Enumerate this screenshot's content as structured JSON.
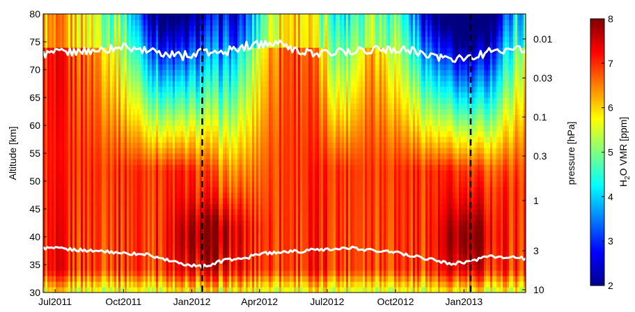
{
  "chart_data": {
    "type": "heatmap",
    "title": "",
    "xlabel": "",
    "ylabel": "Altitude [km]",
    "y2label": "pressure [hPa]",
    "colorbar_label": "H2O VMR [ppm]",
    "colorbar_label_parts": {
      "prefix": "H",
      "subscript": "2",
      "suffix": "O VMR [ppm]"
    },
    "colormap": "jet",
    "clim": [
      2,
      8
    ],
    "colorbar_ticks": [
      "2",
      "3",
      "4",
      "5",
      "6",
      "7",
      "8"
    ],
    "ylim": [
      30,
      80
    ],
    "y_ticks": [
      "30",
      "35",
      "40",
      "45",
      "50",
      "55",
      "60",
      "65",
      "70",
      "75",
      "80"
    ],
    "x_range_months": [
      "2011-06",
      "2013-03"
    ],
    "x_ticks": [
      {
        "label": "Jul2011",
        "date": "2011-07-01"
      },
      {
        "label": "Oct2011",
        "date": "2011-10-01"
      },
      {
        "label": "Jan2012",
        "date": "2012-01-01"
      },
      {
        "label": "Apr2012",
        "date": "2012-04-01"
      },
      {
        "label": "Jul2012",
        "date": "2012-07-01"
      },
      {
        "label": "Oct2012",
        "date": "2012-10-01"
      },
      {
        "label": "Jan2013",
        "date": "2013-01-01"
      }
    ],
    "pressure_ticks": [
      {
        "label": "0.01",
        "altitude_km": 75.5
      },
      {
        "label": "0.03",
        "altitude_km": 68.5
      },
      {
        "label": "0.1",
        "altitude_km": 61.5
      },
      {
        "label": "0.3",
        "altitude_km": 54.5
      },
      {
        "label": "1",
        "altitude_km": 46.5
      },
      {
        "label": "3",
        "altitude_km": 37.5
      },
      {
        "label": "10",
        "altitude_km": 30.5
      }
    ],
    "vertical_dashed_lines": [
      "2012-01-15",
      "2013-01-10"
    ],
    "upper_white_line_km": [
      {
        "date": "2011-06-15",
        "alt": 72.8
      },
      {
        "date": "2011-08-01",
        "alt": 73.2
      },
      {
        "date": "2011-10-01",
        "alt": 74.0
      },
      {
        "date": "2011-11-15",
        "alt": 73.0
      },
      {
        "date": "2011-12-20",
        "alt": 72.5
      },
      {
        "date": "2012-01-15",
        "alt": 73.0
      },
      {
        "date": "2012-02-15",
        "alt": 73.2
      },
      {
        "date": "2012-03-20",
        "alt": 74.5
      },
      {
        "date": "2012-04-20",
        "alt": 74.8
      },
      {
        "date": "2012-06-01",
        "alt": 73.0
      },
      {
        "date": "2012-07-15",
        "alt": 73.2
      },
      {
        "date": "2012-09-01",
        "alt": 73.6
      },
      {
        "date": "2012-10-15",
        "alt": 73.8
      },
      {
        "date": "2012-11-20",
        "alt": 72.5
      },
      {
        "date": "2012-12-20",
        "alt": 71.8
      },
      {
        "date": "2013-01-15",
        "alt": 72.5
      },
      {
        "date": "2013-02-15",
        "alt": 73.5
      },
      {
        "date": "2013-03-25",
        "alt": 73.5
      }
    ],
    "lower_white_line_km": [
      {
        "date": "2011-06-15",
        "alt": 38.0
      },
      {
        "date": "2011-09-01",
        "alt": 37.4
      },
      {
        "date": "2011-11-01",
        "alt": 36.8
      },
      {
        "date": "2011-12-15",
        "alt": 35.2
      },
      {
        "date": "2012-01-15",
        "alt": 34.6
      },
      {
        "date": "2012-02-15",
        "alt": 35.8
      },
      {
        "date": "2012-03-15",
        "alt": 36.2
      },
      {
        "date": "2012-04-01",
        "alt": 37.0
      },
      {
        "date": "2012-06-01",
        "alt": 37.5
      },
      {
        "date": "2012-08-01",
        "alt": 38.0
      },
      {
        "date": "2012-10-01",
        "alt": 37.2
      },
      {
        "date": "2012-11-15",
        "alt": 36.0
      },
      {
        "date": "2012-12-15",
        "alt": 35.2
      },
      {
        "date": "2013-01-10",
        "alt": 35.6
      },
      {
        "date": "2013-02-01",
        "alt": 36.5
      },
      {
        "date": "2013-03-25",
        "alt": 36.1
      }
    ],
    "vmr_field_description": [
      {
        "period": "2011-06 to 2011-09",
        "above_65km": "orange-red 6.5-7",
        "below_65km": "red 7"
      },
      {
        "period": "2011-10 to 2012-01",
        "above_70km": "dark blue 2-2.5",
        "55_70km": "cyan 4-5",
        "below_55km": "red 7-7.5"
      },
      {
        "period": "2012-02 to 2012-03",
        "above_70km": "blue 3",
        "40_65km": "cyan-yellow 4.5-5.5",
        "below_40km": "dark red 7.5"
      },
      {
        "period": "2012-04 to 2012-09",
        "all": "orange-red 6.5-7"
      },
      {
        "period": "2012-10 to 2013-03",
        "above_70km": "dark blue 2-3",
        "50_70km": "cyan-yellow 4.5-5.5",
        "below_50km": "red 7-7.5"
      }
    ]
  }
}
